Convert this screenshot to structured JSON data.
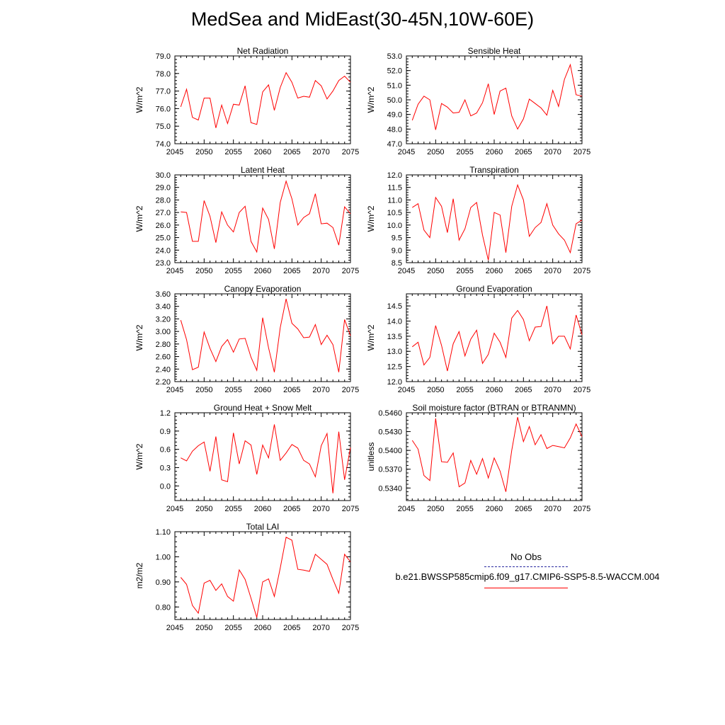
{
  "title": "MedSea and MidEast(30-45N,10W-60E)",
  "legend": {
    "obs_label": "No Obs",
    "case_label": "b.e21.BWSSP585cmip6.f09_g17.CMIP6-SSP5-8.5-WACCM.004",
    "obs_color": "#2a2aa0",
    "case_color": "#ff0000"
  },
  "chart_data": [
    {
      "type": "line",
      "title": "Net Radiation",
      "ylabel": "W/m^2",
      "xlim": [
        2045,
        2075
      ],
      "ylim": [
        74.0,
        79.0
      ],
      "xticks": [
        "2045",
        "2050",
        "2055",
        "2060",
        "2065",
        "2070",
        "2075"
      ],
      "yticks": [
        "74.0",
        "75.0",
        "76.0",
        "77.0",
        "78.0",
        "79.0"
      ],
      "series": [
        {
          "color": "#ff0000",
          "x": [
            2046,
            2047,
            2048,
            2049,
            2050,
            2051,
            2052,
            2053,
            2054,
            2055,
            2056,
            2057,
            2058,
            2059,
            2060,
            2061,
            2062,
            2063,
            2064,
            2065,
            2066,
            2067,
            2068,
            2069,
            2070,
            2071,
            2072,
            2073,
            2074,
            2075
          ],
          "values": [
            76.1,
            77.1,
            75.5,
            75.35,
            76.6,
            76.6,
            74.9,
            76.2,
            75.15,
            76.25,
            76.2,
            77.3,
            75.2,
            75.1,
            76.95,
            77.35,
            75.9,
            77.2,
            78.05,
            77.5,
            76.6,
            76.7,
            76.65,
            77.6,
            77.3,
            76.55,
            77.0,
            77.6,
            77.85,
            77.5
          ]
        }
      ]
    },
    {
      "type": "line",
      "title": "Sensible Heat",
      "ylabel": "W/m^2",
      "xlim": [
        2045,
        2075
      ],
      "ylim": [
        47.0,
        53.0
      ],
      "xticks": [
        "2045",
        "2050",
        "2055",
        "2060",
        "2065",
        "2070",
        "2075"
      ],
      "yticks": [
        "47.0",
        "48.0",
        "49.0",
        "50.0",
        "51.0",
        "52.0",
        "53.0"
      ],
      "series": [
        {
          "color": "#ff0000",
          "x": [
            2046,
            2047,
            2048,
            2049,
            2050,
            2051,
            2052,
            2053,
            2054,
            2055,
            2056,
            2057,
            2058,
            2059,
            2060,
            2061,
            2062,
            2063,
            2064,
            2065,
            2066,
            2067,
            2068,
            2069,
            2070,
            2071,
            2072,
            2073,
            2074,
            2075
          ],
          "values": [
            48.6,
            49.7,
            50.25,
            50.0,
            47.95,
            49.75,
            49.5,
            49.1,
            49.15,
            50.0,
            48.9,
            49.1,
            49.8,
            51.1,
            49.0,
            50.6,
            50.8,
            48.9,
            48.0,
            48.7,
            50.05,
            49.75,
            49.45,
            48.95,
            50.65,
            49.55,
            51.4,
            52.4,
            50.35,
            50.25
          ]
        }
      ]
    },
    {
      "type": "line",
      "title": "Latent Heat",
      "ylabel": "W/m^2",
      "xlim": [
        2045,
        2075
      ],
      "ylim": [
        23.0,
        30.0
      ],
      "xticks": [
        "2045",
        "2050",
        "2055",
        "2060",
        "2065",
        "2070",
        "2075"
      ],
      "yticks": [
        "23.0",
        "24.0",
        "25.0",
        "26.0",
        "27.0",
        "28.0",
        "29.0",
        "30.0"
      ],
      "series": [
        {
          "color": "#ff0000",
          "x": [
            2046,
            2047,
            2048,
            2049,
            2050,
            2051,
            2052,
            2053,
            2054,
            2055,
            2056,
            2057,
            2058,
            2059,
            2060,
            2061,
            2062,
            2063,
            2064,
            2065,
            2066,
            2067,
            2068,
            2069,
            2070,
            2071,
            2072,
            2073,
            2074,
            2075
          ],
          "values": [
            27.05,
            27.0,
            24.7,
            24.7,
            27.95,
            26.7,
            24.6,
            27.05,
            26.0,
            25.45,
            27.0,
            27.5,
            24.7,
            23.85,
            27.35,
            26.45,
            24.1,
            27.8,
            29.5,
            28.1,
            26.0,
            26.6,
            26.9,
            28.5,
            26.1,
            26.15,
            25.8,
            24.4,
            27.45,
            26.9
          ]
        }
      ]
    },
    {
      "type": "line",
      "title": "Transpiration",
      "ylabel": "W/m^2",
      "xlim": [
        2045,
        2075
      ],
      "ylim": [
        8.5,
        12.0
      ],
      "xticks": [
        "2045",
        "2050",
        "2055",
        "2060",
        "2065",
        "2070",
        "2075"
      ],
      "yticks": [
        "8.5",
        "9.0",
        "9.5",
        "10.0",
        "10.5",
        "11.0",
        "11.5",
        "12.0"
      ],
      "series": [
        {
          "color": "#ff0000",
          "x": [
            2046,
            2047,
            2048,
            2049,
            2050,
            2051,
            2052,
            2053,
            2054,
            2055,
            2056,
            2057,
            2058,
            2059,
            2060,
            2061,
            2062,
            2063,
            2064,
            2065,
            2066,
            2067,
            2068,
            2069,
            2070,
            2071,
            2072,
            2073,
            2074,
            2075
          ],
          "values": [
            10.7,
            10.85,
            9.8,
            9.5,
            11.1,
            10.75,
            9.7,
            11.05,
            9.4,
            9.85,
            10.7,
            10.9,
            9.6,
            8.6,
            10.5,
            10.4,
            8.9,
            10.75,
            11.6,
            11.0,
            9.55,
            9.9,
            10.1,
            10.85,
            10.0,
            9.65,
            9.4,
            8.9,
            10.05,
            10.2
          ]
        }
      ]
    },
    {
      "type": "line",
      "title": "Canopy Evaporation",
      "ylabel": "W/m^2",
      "xlim": [
        2045,
        2075
      ],
      "ylim": [
        2.2,
        3.6
      ],
      "xticks": [
        "2045",
        "2050",
        "2055",
        "2060",
        "2065",
        "2070",
        "2075"
      ],
      "yticks": [
        "2.20",
        "2.40",
        "2.60",
        "2.80",
        "3.00",
        "3.20",
        "3.40",
        "3.60"
      ],
      "series": [
        {
          "color": "#ff0000",
          "x": [
            2046,
            2047,
            2048,
            2049,
            2050,
            2051,
            2052,
            2053,
            2054,
            2055,
            2056,
            2057,
            2058,
            2059,
            2060,
            2061,
            2062,
            2063,
            2064,
            2065,
            2066,
            2067,
            2068,
            2069,
            2070,
            2071,
            2072,
            2073,
            2074,
            2075
          ],
          "values": [
            3.18,
            2.87,
            2.39,
            2.43,
            2.99,
            2.73,
            2.52,
            2.76,
            2.87,
            2.67,
            2.88,
            2.89,
            2.59,
            2.38,
            3.22,
            2.74,
            2.35,
            3.06,
            3.52,
            3.13,
            3.04,
            2.9,
            2.91,
            3.11,
            2.79,
            2.94,
            2.79,
            2.35,
            3.19,
            2.93
          ]
        }
      ]
    },
    {
      "type": "line",
      "title": "Ground Evaporation",
      "ylabel": "W/m^2",
      "xlim": [
        2045,
        2075
      ],
      "ylim": [
        12.0,
        14.9
      ],
      "xticks": [
        "2045",
        "2050",
        "2055",
        "2060",
        "2065",
        "2070",
        "2075"
      ],
      "yticks": [
        "12.0",
        "12.5",
        "13.0",
        "13.5",
        "14.0",
        "14.5"
      ],
      "series": [
        {
          "color": "#ff0000",
          "x": [
            2046,
            2047,
            2048,
            2049,
            2050,
            2051,
            2052,
            2053,
            2054,
            2055,
            2056,
            2057,
            2058,
            2059,
            2060,
            2061,
            2062,
            2063,
            2064,
            2065,
            2066,
            2067,
            2068,
            2069,
            2070,
            2071,
            2072,
            2073,
            2074,
            2075
          ],
          "values": [
            13.15,
            13.3,
            12.55,
            12.8,
            13.85,
            13.2,
            12.35,
            13.25,
            13.65,
            12.85,
            13.4,
            13.7,
            12.6,
            12.9,
            13.6,
            13.3,
            12.8,
            14.1,
            14.35,
            14.05,
            13.35,
            13.8,
            13.82,
            14.5,
            13.25,
            13.5,
            13.5,
            13.08,
            14.2,
            13.55
          ]
        }
      ]
    },
    {
      "type": "line",
      "title": "Ground Heat + Snow Melt",
      "ylabel": "W/m^2",
      "xlim": [
        2045,
        2075
      ],
      "ylim": [
        -0.24,
        1.2
      ],
      "xticks": [
        "2045",
        "2050",
        "2055",
        "2060",
        "2065",
        "2070",
        "2075"
      ],
      "yticks": [
        "0.0",
        "0.3",
        "0.6",
        "0.9",
        "1.2"
      ],
      "series": [
        {
          "color": "#ff0000",
          "x": [
            2046,
            2047,
            2048,
            2049,
            2050,
            2051,
            2052,
            2053,
            2054,
            2055,
            2056,
            2057,
            2058,
            2059,
            2060,
            2061,
            2062,
            2063,
            2064,
            2065,
            2066,
            2067,
            2068,
            2069,
            2070,
            2071,
            2072,
            2073,
            2074,
            2075
          ],
          "values": [
            0.46,
            0.41,
            0.57,
            0.66,
            0.72,
            0.24,
            0.81,
            0.1,
            0.07,
            0.87,
            0.36,
            0.74,
            0.67,
            0.19,
            0.67,
            0.46,
            1.01,
            0.42,
            0.54,
            0.68,
            0.62,
            0.42,
            0.36,
            0.15,
            0.66,
            0.86,
            -0.12,
            0.89,
            0.1,
            0.63
          ]
        }
      ]
    },
    {
      "type": "line",
      "title": "Soil moisture factor (BTRAN or BTRANMN)",
      "ylabel": "unitless",
      "xlim": [
        2045,
        2075
      ],
      "ylim": [
        0.532,
        0.546
      ],
      "xticks": [
        "2045",
        "2050",
        "2055",
        "2060",
        "2065",
        "2070",
        "2075"
      ],
      "yticks": [
        "0.5340",
        "0.5370",
        "0.5400",
        "0.5430",
        "0.5460"
      ],
      "series": [
        {
          "color": "#ff0000",
          "x": [
            2046,
            2047,
            2048,
            2049,
            2050,
            2051,
            2052,
            2053,
            2054,
            2055,
            2056,
            2057,
            2058,
            2059,
            2060,
            2061,
            2062,
            2063,
            2064,
            2065,
            2066,
            2067,
            2068,
            2069,
            2070,
            2071,
            2072,
            2073,
            2074,
            2075
          ],
          "values": [
            0.5416,
            0.5402,
            0.536,
            0.5352,
            0.5451,
            0.5382,
            0.5381,
            0.5396,
            0.5342,
            0.5348,
            0.5384,
            0.5362,
            0.5387,
            0.5356,
            0.5388,
            0.5367,
            0.5334,
            0.54,
            0.5453,
            0.5414,
            0.5438,
            0.5409,
            0.5425,
            0.5403,
            0.5408,
            0.5406,
            0.5404,
            0.542,
            0.5442,
            0.5422
          ]
        }
      ]
    },
    {
      "type": "line",
      "title": "Total LAI",
      "ylabel": "m2/m2",
      "xlim": [
        2045,
        2075
      ],
      "ylim": [
        0.75,
        1.1
      ],
      "xticks": [
        "2045",
        "2050",
        "2055",
        "2060",
        "2065",
        "2070",
        "2075"
      ],
      "yticks": [
        "0.80",
        "0.90",
        "1.00",
        "1.10"
      ],
      "series": [
        {
          "color": "#ff0000",
          "x": [
            2046,
            2047,
            2048,
            2049,
            2050,
            2051,
            2052,
            2053,
            2054,
            2055,
            2056,
            2057,
            2058,
            2059,
            2060,
            2061,
            2062,
            2063,
            2064,
            2065,
            2066,
            2067,
            2068,
            2069,
            2070,
            2071,
            2072,
            2073,
            2074,
            2075
          ],
          "values": [
            0.918,
            0.89,
            0.806,
            0.775,
            0.895,
            0.906,
            0.866,
            0.892,
            0.842,
            0.823,
            0.948,
            0.91,
            0.835,
            0.758,
            0.9,
            0.912,
            0.842,
            0.955,
            1.078,
            1.066,
            0.95,
            0.947,
            0.942,
            1.01,
            0.99,
            0.97,
            0.91,
            0.855,
            1.01,
            0.98
          ]
        }
      ]
    }
  ]
}
